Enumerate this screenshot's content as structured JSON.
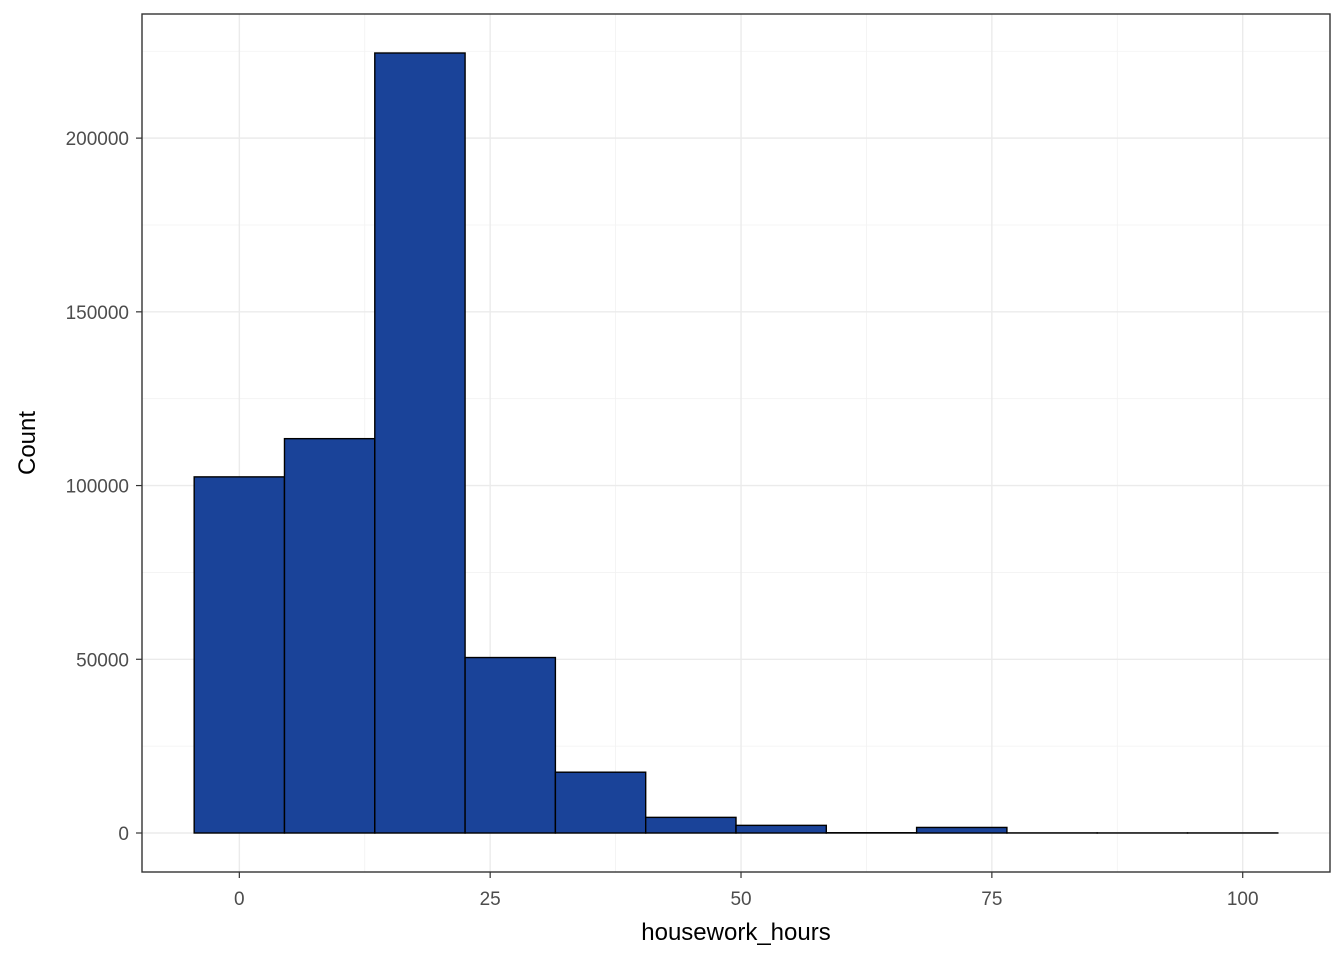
{
  "chart_data": {
    "type": "bar",
    "subtype": "histogram",
    "title": "",
    "xlabel": "housework_hours",
    "ylabel": "Count",
    "bin_width": 9,
    "bins": [
      {
        "start": -4.5,
        "end": 4.5,
        "count": 102500
      },
      {
        "start": 4.5,
        "end": 13.5,
        "count": 113500
      },
      {
        "start": 13.5,
        "end": 22.5,
        "count": 224500
      },
      {
        "start": 22.5,
        "end": 31.5,
        "count": 50500
      },
      {
        "start": 31.5,
        "end": 40.5,
        "count": 17500
      },
      {
        "start": 40.5,
        "end": 49.5,
        "count": 4500
      },
      {
        "start": 49.5,
        "end": 58.5,
        "count": 2200
      },
      {
        "start": 58.5,
        "end": 67.5,
        "count": 80
      },
      {
        "start": 67.5,
        "end": 76.5,
        "count": 1600
      },
      {
        "start": 76.5,
        "end": 85.5,
        "count": 30
      },
      {
        "start": 85.5,
        "end": 94.5,
        "count": 20
      },
      {
        "start": 94.5,
        "end": 103.5,
        "count": 20
      }
    ],
    "xlim": [
      -9.7,
      108.7
    ],
    "ylim": [
      -11225,
      235725
    ],
    "x_ticks": [
      0,
      25,
      50,
      75,
      100
    ],
    "x_tick_labels": [
      "0",
      "25",
      "50",
      "75",
      "100"
    ],
    "y_ticks": [
      0,
      50000,
      100000,
      150000,
      200000
    ],
    "y_tick_labels": [
      "0",
      "50000",
      "100000",
      "150000",
      "200000"
    ],
    "x_minor_ticks": [
      12.5,
      37.5,
      62.5,
      87.5
    ],
    "y_minor_ticks": [
      25000,
      75000,
      125000,
      175000,
      225000
    ],
    "grid": true,
    "legend": "none",
    "colors": {
      "bar_fill": "#1A4399",
      "bar_outline": "#000000",
      "panel_border": "#333333",
      "background": "#FFFFFF"
    }
  }
}
